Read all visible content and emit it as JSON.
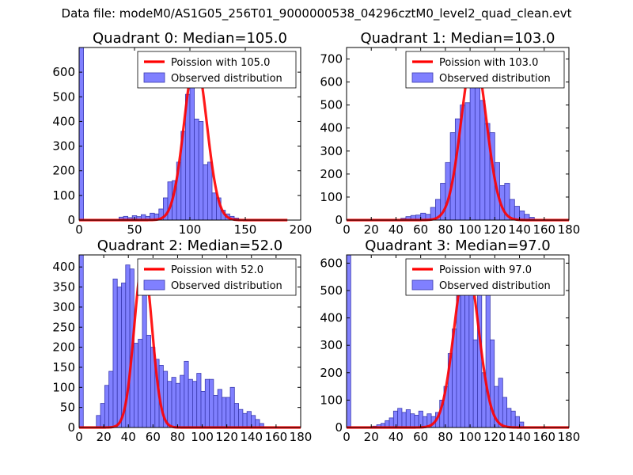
{
  "figure_title": "Data file: modeM0/AS1G05_256T01_9000000538_04296cztM0_level2_quad_clean.evt",
  "colors": {
    "histogram_fill": "#8080ff",
    "histogram_edge": "#3a3ab0",
    "poisson_line": "#ff0000"
  },
  "chart_data": [
    {
      "type": "bar",
      "title": "Quadrant 0: Median=105.0",
      "xlim": [
        0,
        200
      ],
      "ylim": [
        0,
        700
      ],
      "xticks": [
        0,
        50,
        100,
        150,
        200
      ],
      "yticks": [
        0,
        100,
        200,
        300,
        400,
        500,
        600
      ],
      "bin_width": 4,
      "bin_starts": [
        0,
        36,
        40,
        44,
        48,
        52,
        56,
        60,
        64,
        68,
        72,
        76,
        80,
        84,
        88,
        92,
        96,
        100,
        104,
        108,
        112,
        116,
        120,
        124,
        128,
        132,
        136,
        140
      ],
      "values": [
        700,
        12,
        15,
        10,
        18,
        14,
        22,
        15,
        28,
        25,
        45,
        90,
        155,
        160,
        235,
        360,
        510,
        570,
        410,
        400,
        225,
        235,
        110,
        90,
        40,
        25,
        15,
        8
      ],
      "legend": [
        "Poission with 105.0",
        "Observed distribution"
      ],
      "poisson_mean": 105.0,
      "poisson_peak": 650,
      "poisson_xrange": [
        0,
        188
      ]
    },
    {
      "type": "bar",
      "title": "Quadrant 1: Median=103.0",
      "xlim": [
        0,
        180
      ],
      "ylim": [
        0,
        750
      ],
      "xticks": [
        0,
        20,
        40,
        60,
        80,
        100,
        120,
        140,
        160,
        180
      ],
      "yticks": [
        0,
        100,
        200,
        300,
        400,
        500,
        600,
        700
      ],
      "bin_width": 4,
      "bin_starts": [
        44,
        48,
        52,
        56,
        60,
        64,
        68,
        72,
        76,
        80,
        84,
        88,
        92,
        96,
        100,
        104,
        108,
        112,
        116,
        120,
        124,
        128,
        132,
        136,
        140,
        144,
        148
      ],
      "values": [
        8,
        15,
        20,
        22,
        30,
        25,
        55,
        90,
        160,
        250,
        380,
        440,
        500,
        510,
        680,
        600,
        520,
        420,
        380,
        250,
        150,
        160,
        90,
        60,
        40,
        25,
        12
      ],
      "legend": [
        "Poission with 103.0",
        "Observed distribution"
      ],
      "poisson_mean": 103.0,
      "poisson_peak": 720,
      "poisson_xrange": [
        0,
        180
      ]
    },
    {
      "type": "bar",
      "title": "Quadrant 2: Median=52.0",
      "xlim": [
        0,
        180
      ],
      "ylim": [
        0,
        430
      ],
      "xticks": [
        0,
        20,
        40,
        60,
        80,
        100,
        120,
        140,
        160,
        180
      ],
      "yticks": [
        0,
        50,
        100,
        150,
        200,
        250,
        300,
        350,
        400
      ],
      "bin_width": 3.4,
      "bin_starts": [
        0,
        14,
        17.4,
        20.8,
        24.2,
        27.6,
        31,
        34.4,
        37.8,
        41.2,
        44.6,
        48,
        51.4,
        54.8,
        58.2,
        61.6,
        65,
        68.4,
        71.8,
        75.2,
        78.6,
        82,
        85.4,
        88.8,
        92.2,
        95.6,
        99,
        102.4,
        105.8,
        109.2,
        112.6,
        116,
        119.4,
        122.8,
        126.2,
        129.6,
        133,
        136.4,
        139.8,
        143.2,
        146.6
      ],
      "values": [
        430,
        30,
        60,
        105,
        140,
        370,
        350,
        360,
        405,
        395,
        210,
        220,
        410,
        230,
        200,
        170,
        155,
        140,
        115,
        125,
        110,
        130,
        165,
        120,
        115,
        135,
        90,
        120,
        120,
        80,
        95,
        75,
        75,
        100,
        60,
        45,
        35,
        40,
        30,
        20,
        10
      ],
      "legend": [
        "Poission with 52.0",
        "Observed distribution"
      ],
      "poisson_mean": 52.0,
      "poisson_peak": 415,
      "poisson_xrange": [
        0,
        180
      ]
    },
    {
      "type": "bar",
      "title": "Quadrant 3: Median=97.0",
      "xlim": [
        0,
        180
      ],
      "ylim": [
        0,
        630
      ],
      "xticks": [
        0,
        20,
        40,
        60,
        80,
        100,
        120,
        140,
        160,
        180
      ],
      "yticks": [
        0,
        100,
        200,
        300,
        400,
        500,
        600
      ],
      "bin_width": 3.4,
      "bin_starts": [
        0,
        21,
        24.4,
        27.8,
        31.2,
        34.6,
        38,
        41.4,
        44.8,
        48.2,
        51.6,
        55,
        58.4,
        61.8,
        65.2,
        68.6,
        72,
        75.4,
        78.8,
        82.2,
        85.6,
        89,
        92.4,
        95.8,
        99.2,
        102.6,
        106,
        109.4,
        112.8,
        116.2,
        119.6,
        123,
        126.4,
        129.8,
        133.2,
        136.6,
        140
      ],
      "values": [
        630,
        5,
        10,
        15,
        25,
        35,
        60,
        70,
        55,
        65,
        50,
        45,
        60,
        40,
        50,
        40,
        55,
        100,
        150,
        270,
        360,
        480,
        580,
        510,
        500,
        320,
        600,
        200,
        500,
        320,
        150,
        180,
        110,
        70,
        60,
        40,
        20
      ],
      "legend": [
        "Poission with 97.0",
        "Observed distribution"
      ],
      "poisson_mean": 97.0,
      "poisson_peak": 600,
      "poisson_xrange": [
        0,
        180
      ]
    }
  ]
}
